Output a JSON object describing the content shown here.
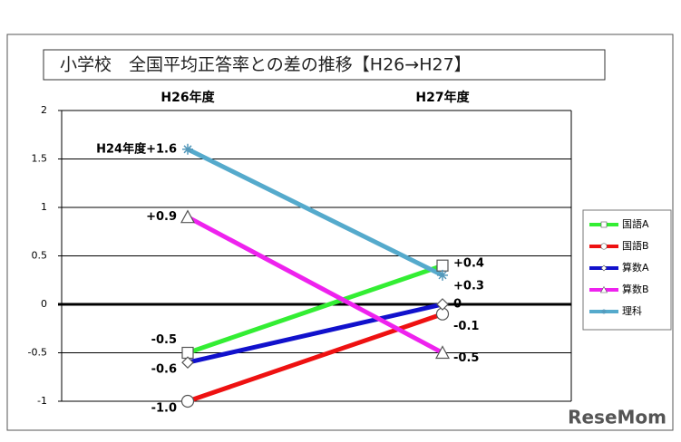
{
  "chart_data": {
    "type": "line",
    "title": "小学校　全国平均正答率との差の推移【H26→H27】",
    "categories": [
      "H26年度",
      "H27年度"
    ],
    "ylim": [
      -1,
      2
    ],
    "yticks": [
      -1,
      -0.5,
      0,
      0.5,
      1,
      1.5,
      2
    ],
    "grid": true,
    "series": [
      {
        "name": "国語A",
        "color": "#33ee33",
        "marker": "square",
        "values": [
          -0.5,
          0.4
        ],
        "value_labels": [
          "-0.5",
          "+0.4"
        ]
      },
      {
        "name": "国語B",
        "color": "#ee1111",
        "marker": "circle",
        "values": [
          -1.0,
          -0.1
        ],
        "value_labels": [
          "-1.0",
          "-0.1"
        ]
      },
      {
        "name": "算数A",
        "color": "#1111cc",
        "marker": "diamond",
        "values": [
          -0.6,
          0
        ],
        "value_labels": [
          "-0.6",
          "0"
        ]
      },
      {
        "name": "算数B",
        "color": "#ee22ee",
        "marker": "triangle",
        "values": [
          0.9,
          -0.5
        ],
        "value_labels": [
          "+0.9",
          "-0.5"
        ]
      },
      {
        "name": "理科",
        "color": "#55aacc",
        "marker": "star",
        "values": [
          1.6,
          0.3
        ],
        "value_labels": [
          "H24年度+1.6",
          "+0.3"
        ]
      }
    ],
    "legend": "right",
    "watermark": "ReseMom"
  }
}
